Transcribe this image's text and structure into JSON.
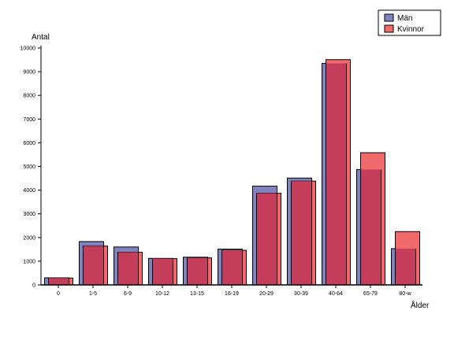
{
  "chart_data": {
    "type": "bar",
    "ylabel": "Antal",
    "xlabel": "Ålder",
    "ylim": [
      0,
      10000
    ],
    "yticks": [
      0,
      1000,
      2000,
      3000,
      4000,
      5000,
      6000,
      7000,
      8000,
      9000,
      10000
    ],
    "categories": [
      "0",
      "1-5",
      "6-9",
      "10-12",
      "13-15",
      "16-19",
      "20-29",
      "30-39",
      "40-64",
      "65-79",
      "80-w"
    ],
    "series": [
      {
        "name": "Män",
        "color": "#7f84c0",
        "values": [
          300,
          1830,
          1600,
          1120,
          1170,
          1510,
          4170,
          4510,
          9350,
          4870,
          1530
        ]
      },
      {
        "name": "Kvinnor",
        "color": "#f06a6c",
        "values": [
          290,
          1640,
          1380,
          1110,
          1140,
          1460,
          3870,
          4380,
          9510,
          5580,
          2250
        ]
      }
    ],
    "legend": "top-right",
    "overlap_color": "#c43d5a",
    "grid": false
  }
}
